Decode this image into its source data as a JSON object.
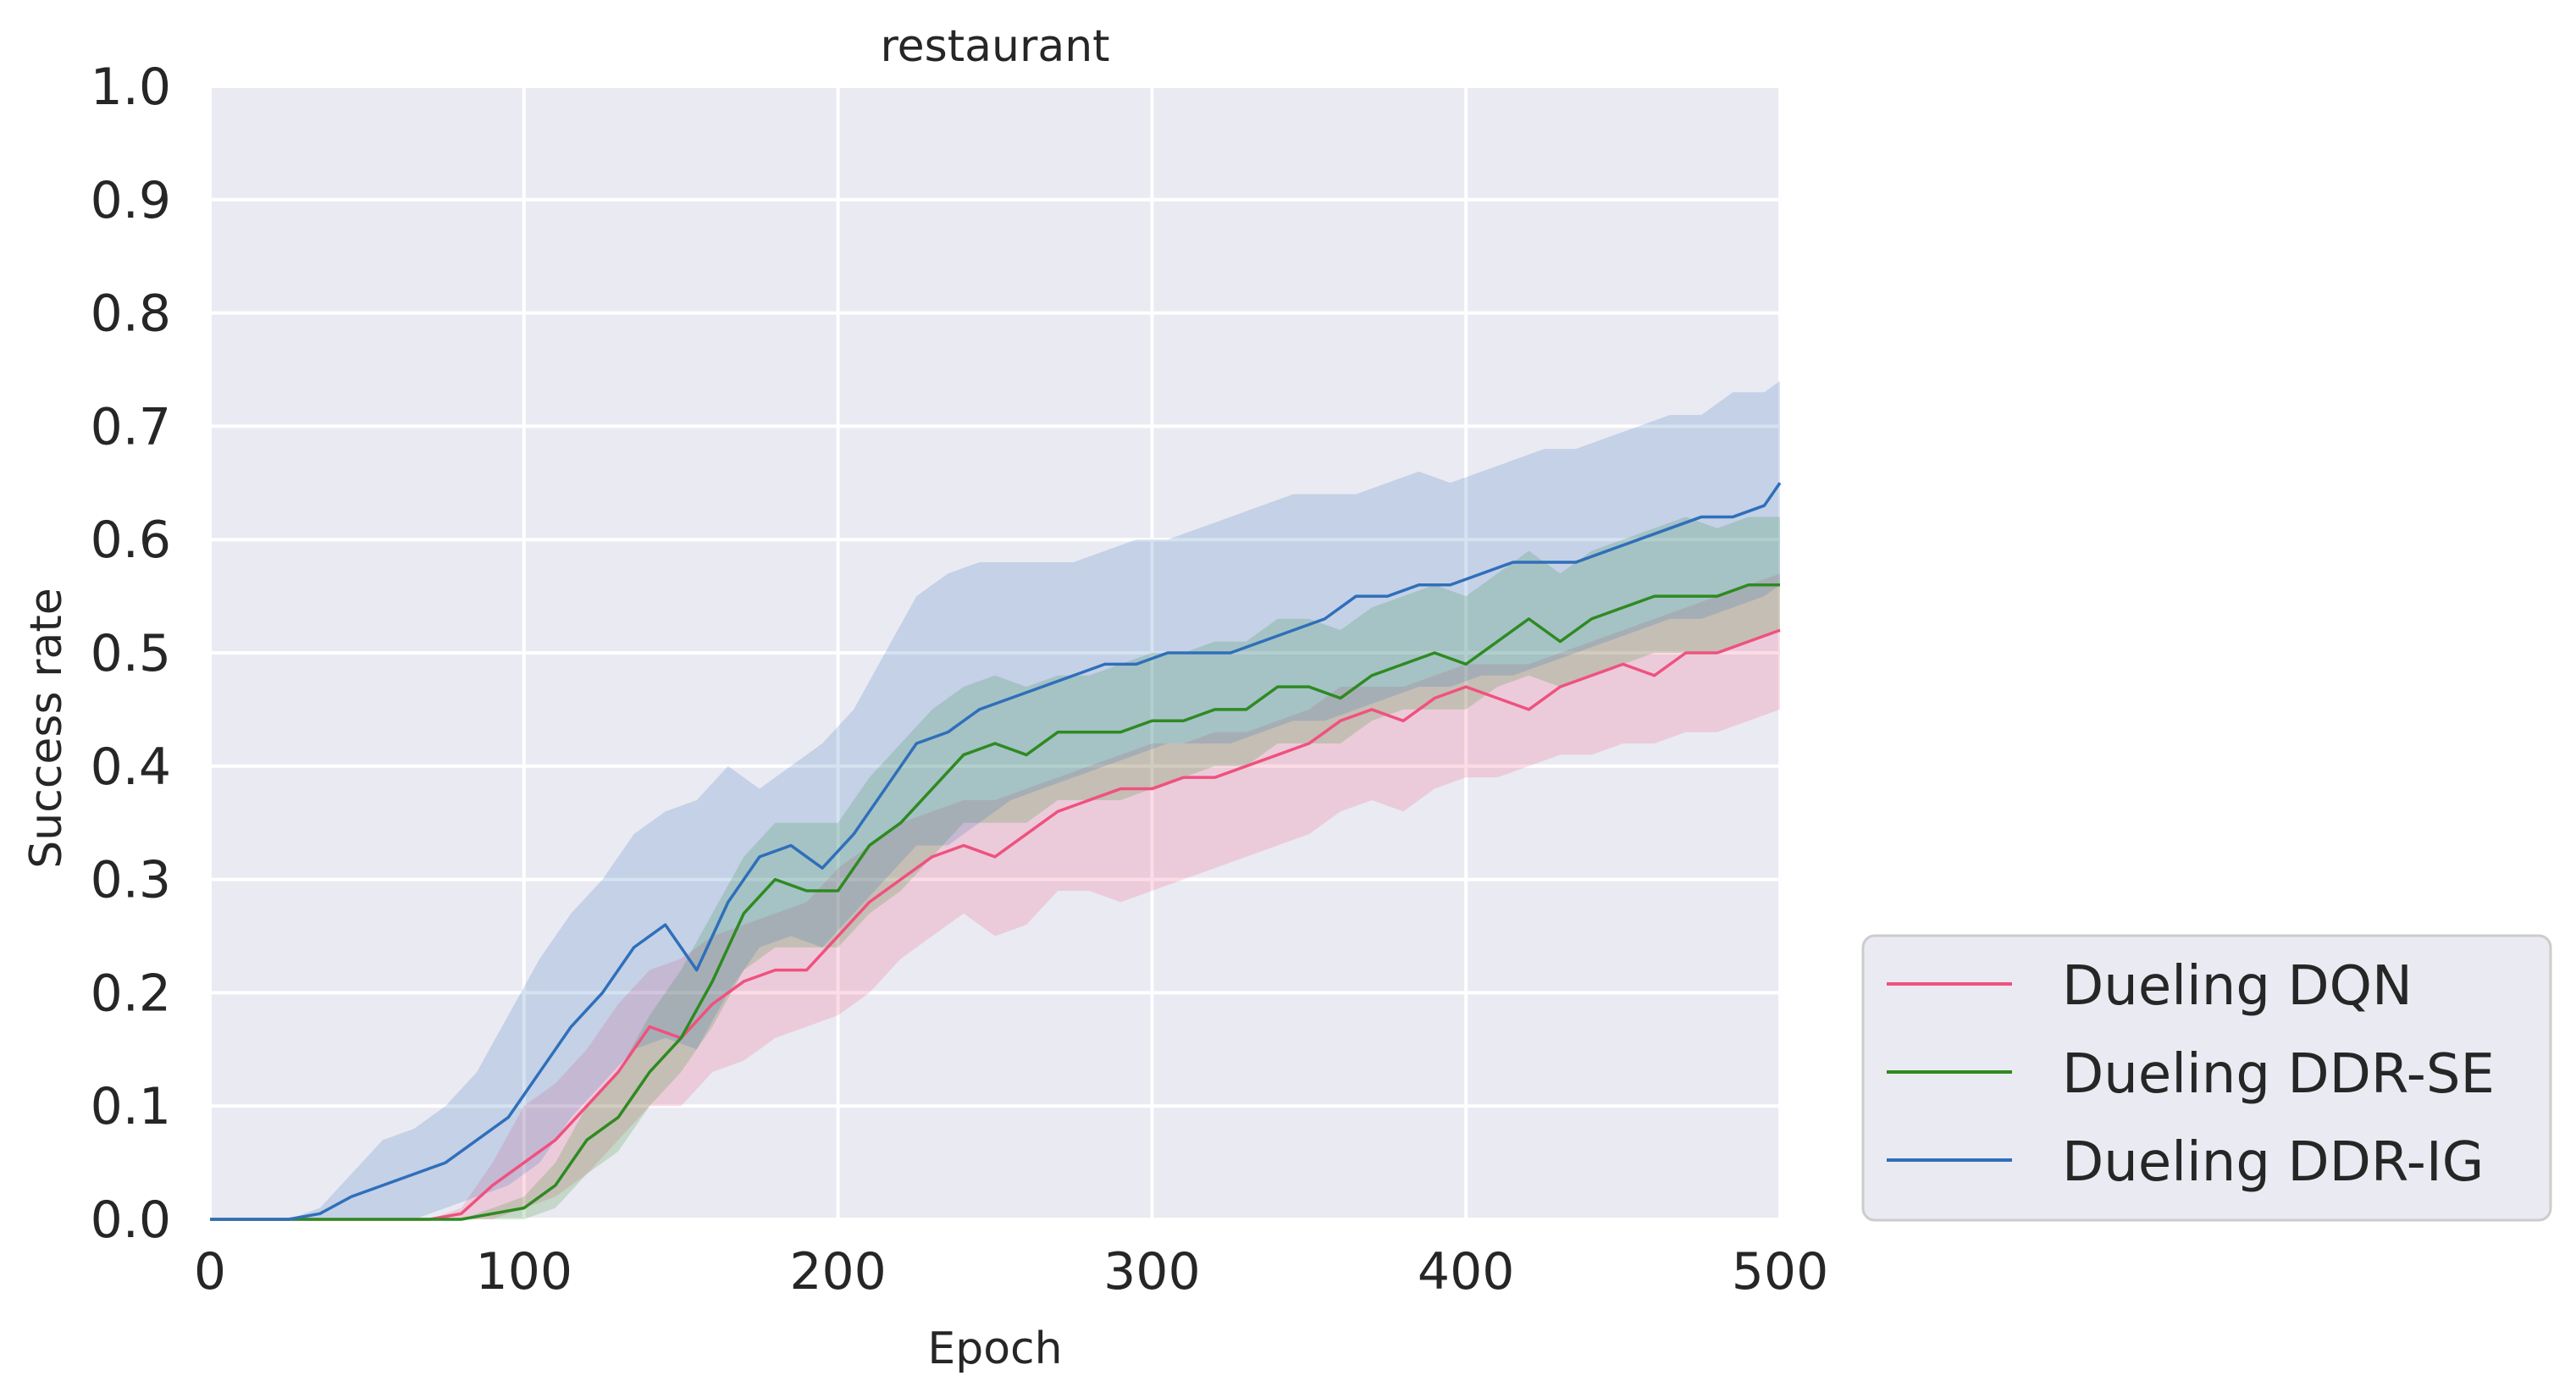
{
  "chart_data": {
    "type": "line",
    "title": "restaurant",
    "xlabel": "Epoch",
    "ylabel": "Success rate",
    "xlim": [
      0,
      500
    ],
    "ylim": [
      0.0,
      1.0
    ],
    "xticks": [
      "0",
      "100",
      "200",
      "300",
      "400",
      "500"
    ],
    "yticks": [
      "0.0",
      "0.1",
      "0.2",
      "0.3",
      "0.4",
      "0.5",
      "0.6",
      "0.7",
      "0.8",
      "0.9",
      "1.0"
    ],
    "grid": true,
    "legend_position": "outside-bottom-right",
    "series": [
      {
        "name": "Dueling DQN",
        "color": "#f0517f",
        "x": [
          0,
          70,
          80,
          90,
          100,
          110,
          120,
          130,
          140,
          150,
          160,
          170,
          180,
          190,
          200,
          210,
          220,
          230,
          240,
          250,
          260,
          270,
          280,
          290,
          300,
          310,
          320,
          330,
          340,
          350,
          360,
          370,
          380,
          390,
          400,
          410,
          420,
          430,
          440,
          450,
          460,
          470,
          480,
          490,
          500
        ],
        "y": [
          0.0,
          0.0,
          0.005,
          0.03,
          0.05,
          0.07,
          0.1,
          0.13,
          0.17,
          0.16,
          0.19,
          0.21,
          0.22,
          0.22,
          0.25,
          0.28,
          0.3,
          0.32,
          0.33,
          0.32,
          0.34,
          0.36,
          0.37,
          0.38,
          0.38,
          0.39,
          0.39,
          0.4,
          0.41,
          0.42,
          0.44,
          0.45,
          0.44,
          0.46,
          0.47,
          0.46,
          0.45,
          0.47,
          0.48,
          0.49,
          0.48,
          0.5,
          0.5,
          0.51,
          0.52
        ],
        "lower": [
          0.0,
          0.0,
          0.0,
          0.0,
          0.01,
          0.02,
          0.04,
          0.07,
          0.1,
          0.1,
          0.13,
          0.14,
          0.16,
          0.17,
          0.18,
          0.2,
          0.23,
          0.25,
          0.27,
          0.25,
          0.26,
          0.29,
          0.29,
          0.28,
          0.29,
          0.3,
          0.31,
          0.32,
          0.33,
          0.34,
          0.36,
          0.37,
          0.36,
          0.38,
          0.39,
          0.39,
          0.4,
          0.41,
          0.41,
          0.42,
          0.42,
          0.43,
          0.43,
          0.44,
          0.45
        ],
        "upper": [
          0.0,
          0.0,
          0.01,
          0.05,
          0.1,
          0.12,
          0.15,
          0.19,
          0.22,
          0.23,
          0.25,
          0.26,
          0.27,
          0.28,
          0.31,
          0.33,
          0.35,
          0.36,
          0.37,
          0.37,
          0.38,
          0.39,
          0.4,
          0.41,
          0.42,
          0.42,
          0.43,
          0.43,
          0.44,
          0.45,
          0.47,
          0.47,
          0.47,
          0.48,
          0.49,
          0.49,
          0.49,
          0.5,
          0.51,
          0.52,
          0.53,
          0.54,
          0.55,
          0.56,
          0.57
        ]
      },
      {
        "name": "Dueling DDR-SE",
        "color": "#2e8a21",
        "x": [
          0,
          80,
          90,
          100,
          110,
          120,
          130,
          140,
          150,
          160,
          170,
          180,
          190,
          200,
          210,
          220,
          230,
          240,
          250,
          260,
          270,
          280,
          290,
          300,
          310,
          320,
          330,
          340,
          350,
          360,
          370,
          380,
          390,
          400,
          410,
          420,
          430,
          440,
          450,
          460,
          470,
          480,
          490,
          500
        ],
        "y": [
          0.0,
          0.0,
          0.005,
          0.01,
          0.03,
          0.07,
          0.09,
          0.13,
          0.16,
          0.21,
          0.27,
          0.3,
          0.29,
          0.29,
          0.33,
          0.35,
          0.38,
          0.41,
          0.42,
          0.41,
          0.43,
          0.43,
          0.43,
          0.44,
          0.44,
          0.45,
          0.45,
          0.47,
          0.47,
          0.46,
          0.48,
          0.49,
          0.5,
          0.49,
          0.51,
          0.53,
          0.51,
          0.53,
          0.54,
          0.55,
          0.55,
          0.55,
          0.56,
          0.56
        ],
        "lower": [
          0.0,
          0.0,
          0.0,
          0.0,
          0.01,
          0.04,
          0.06,
          0.1,
          0.13,
          0.17,
          0.22,
          0.24,
          0.24,
          0.24,
          0.27,
          0.29,
          0.32,
          0.35,
          0.35,
          0.35,
          0.37,
          0.37,
          0.37,
          0.38,
          0.39,
          0.4,
          0.4,
          0.42,
          0.42,
          0.42,
          0.44,
          0.45,
          0.45,
          0.45,
          0.47,
          0.48,
          0.47,
          0.48,
          0.49,
          0.5,
          0.5,
          0.5,
          0.51,
          0.52
        ],
        "upper": [
          0.0,
          0.0,
          0.01,
          0.02,
          0.05,
          0.1,
          0.13,
          0.18,
          0.22,
          0.27,
          0.32,
          0.35,
          0.35,
          0.35,
          0.39,
          0.42,
          0.45,
          0.47,
          0.48,
          0.47,
          0.48,
          0.48,
          0.49,
          0.5,
          0.5,
          0.51,
          0.51,
          0.53,
          0.53,
          0.52,
          0.54,
          0.55,
          0.56,
          0.55,
          0.57,
          0.59,
          0.57,
          0.59,
          0.6,
          0.61,
          0.62,
          0.61,
          0.62,
          0.62
        ]
      },
      {
        "name": "Dueling DDR-IG",
        "color": "#2f6fba",
        "x": [
          0,
          25,
          35,
          45,
          55,
          65,
          75,
          85,
          95,
          105,
          115,
          125,
          135,
          145,
          155,
          165,
          175,
          185,
          195,
          205,
          215,
          225,
          235,
          245,
          255,
          265,
          275,
          285,
          295,
          305,
          315,
          325,
          335,
          345,
          355,
          365,
          375,
          385,
          395,
          405,
          415,
          425,
          435,
          445,
          455,
          465,
          475,
          485,
          495,
          500
        ],
        "y": [
          0.0,
          0.0,
          0.005,
          0.02,
          0.03,
          0.04,
          0.05,
          0.07,
          0.09,
          0.13,
          0.17,
          0.2,
          0.24,
          0.26,
          0.22,
          0.28,
          0.32,
          0.33,
          0.31,
          0.34,
          0.38,
          0.42,
          0.43,
          0.45,
          0.46,
          0.47,
          0.48,
          0.49,
          0.49,
          0.5,
          0.5,
          0.5,
          0.51,
          0.52,
          0.53,
          0.55,
          0.55,
          0.56,
          0.56,
          0.57,
          0.58,
          0.58,
          0.58,
          0.59,
          0.6,
          0.61,
          0.62,
          0.62,
          0.63,
          0.65
        ],
        "lower": [
          0.0,
          0.0,
          0.0,
          0.0,
          0.0,
          0.0,
          0.01,
          0.02,
          0.03,
          0.05,
          0.09,
          0.12,
          0.15,
          0.16,
          0.15,
          0.2,
          0.24,
          0.25,
          0.24,
          0.27,
          0.3,
          0.33,
          0.33,
          0.35,
          0.37,
          0.38,
          0.39,
          0.4,
          0.41,
          0.42,
          0.42,
          0.42,
          0.43,
          0.44,
          0.44,
          0.45,
          0.46,
          0.47,
          0.47,
          0.48,
          0.48,
          0.49,
          0.5,
          0.51,
          0.52,
          0.53,
          0.53,
          0.54,
          0.55,
          0.56
        ],
        "upper": [
          0.0,
          0.0,
          0.01,
          0.04,
          0.07,
          0.08,
          0.1,
          0.13,
          0.18,
          0.23,
          0.27,
          0.3,
          0.34,
          0.36,
          0.37,
          0.4,
          0.38,
          0.4,
          0.42,
          0.45,
          0.5,
          0.55,
          0.57,
          0.58,
          0.58,
          0.58,
          0.58,
          0.59,
          0.6,
          0.6,
          0.61,
          0.62,
          0.63,
          0.64,
          0.64,
          0.64,
          0.65,
          0.66,
          0.65,
          0.66,
          0.67,
          0.68,
          0.68,
          0.69,
          0.7,
          0.71,
          0.71,
          0.73,
          0.73,
          0.74
        ]
      }
    ]
  },
  "colors": {
    "plot_background": "#eaeaf2",
    "grid": "#ffffff",
    "text": "#262626",
    "legend_border": "#cccccc"
  }
}
